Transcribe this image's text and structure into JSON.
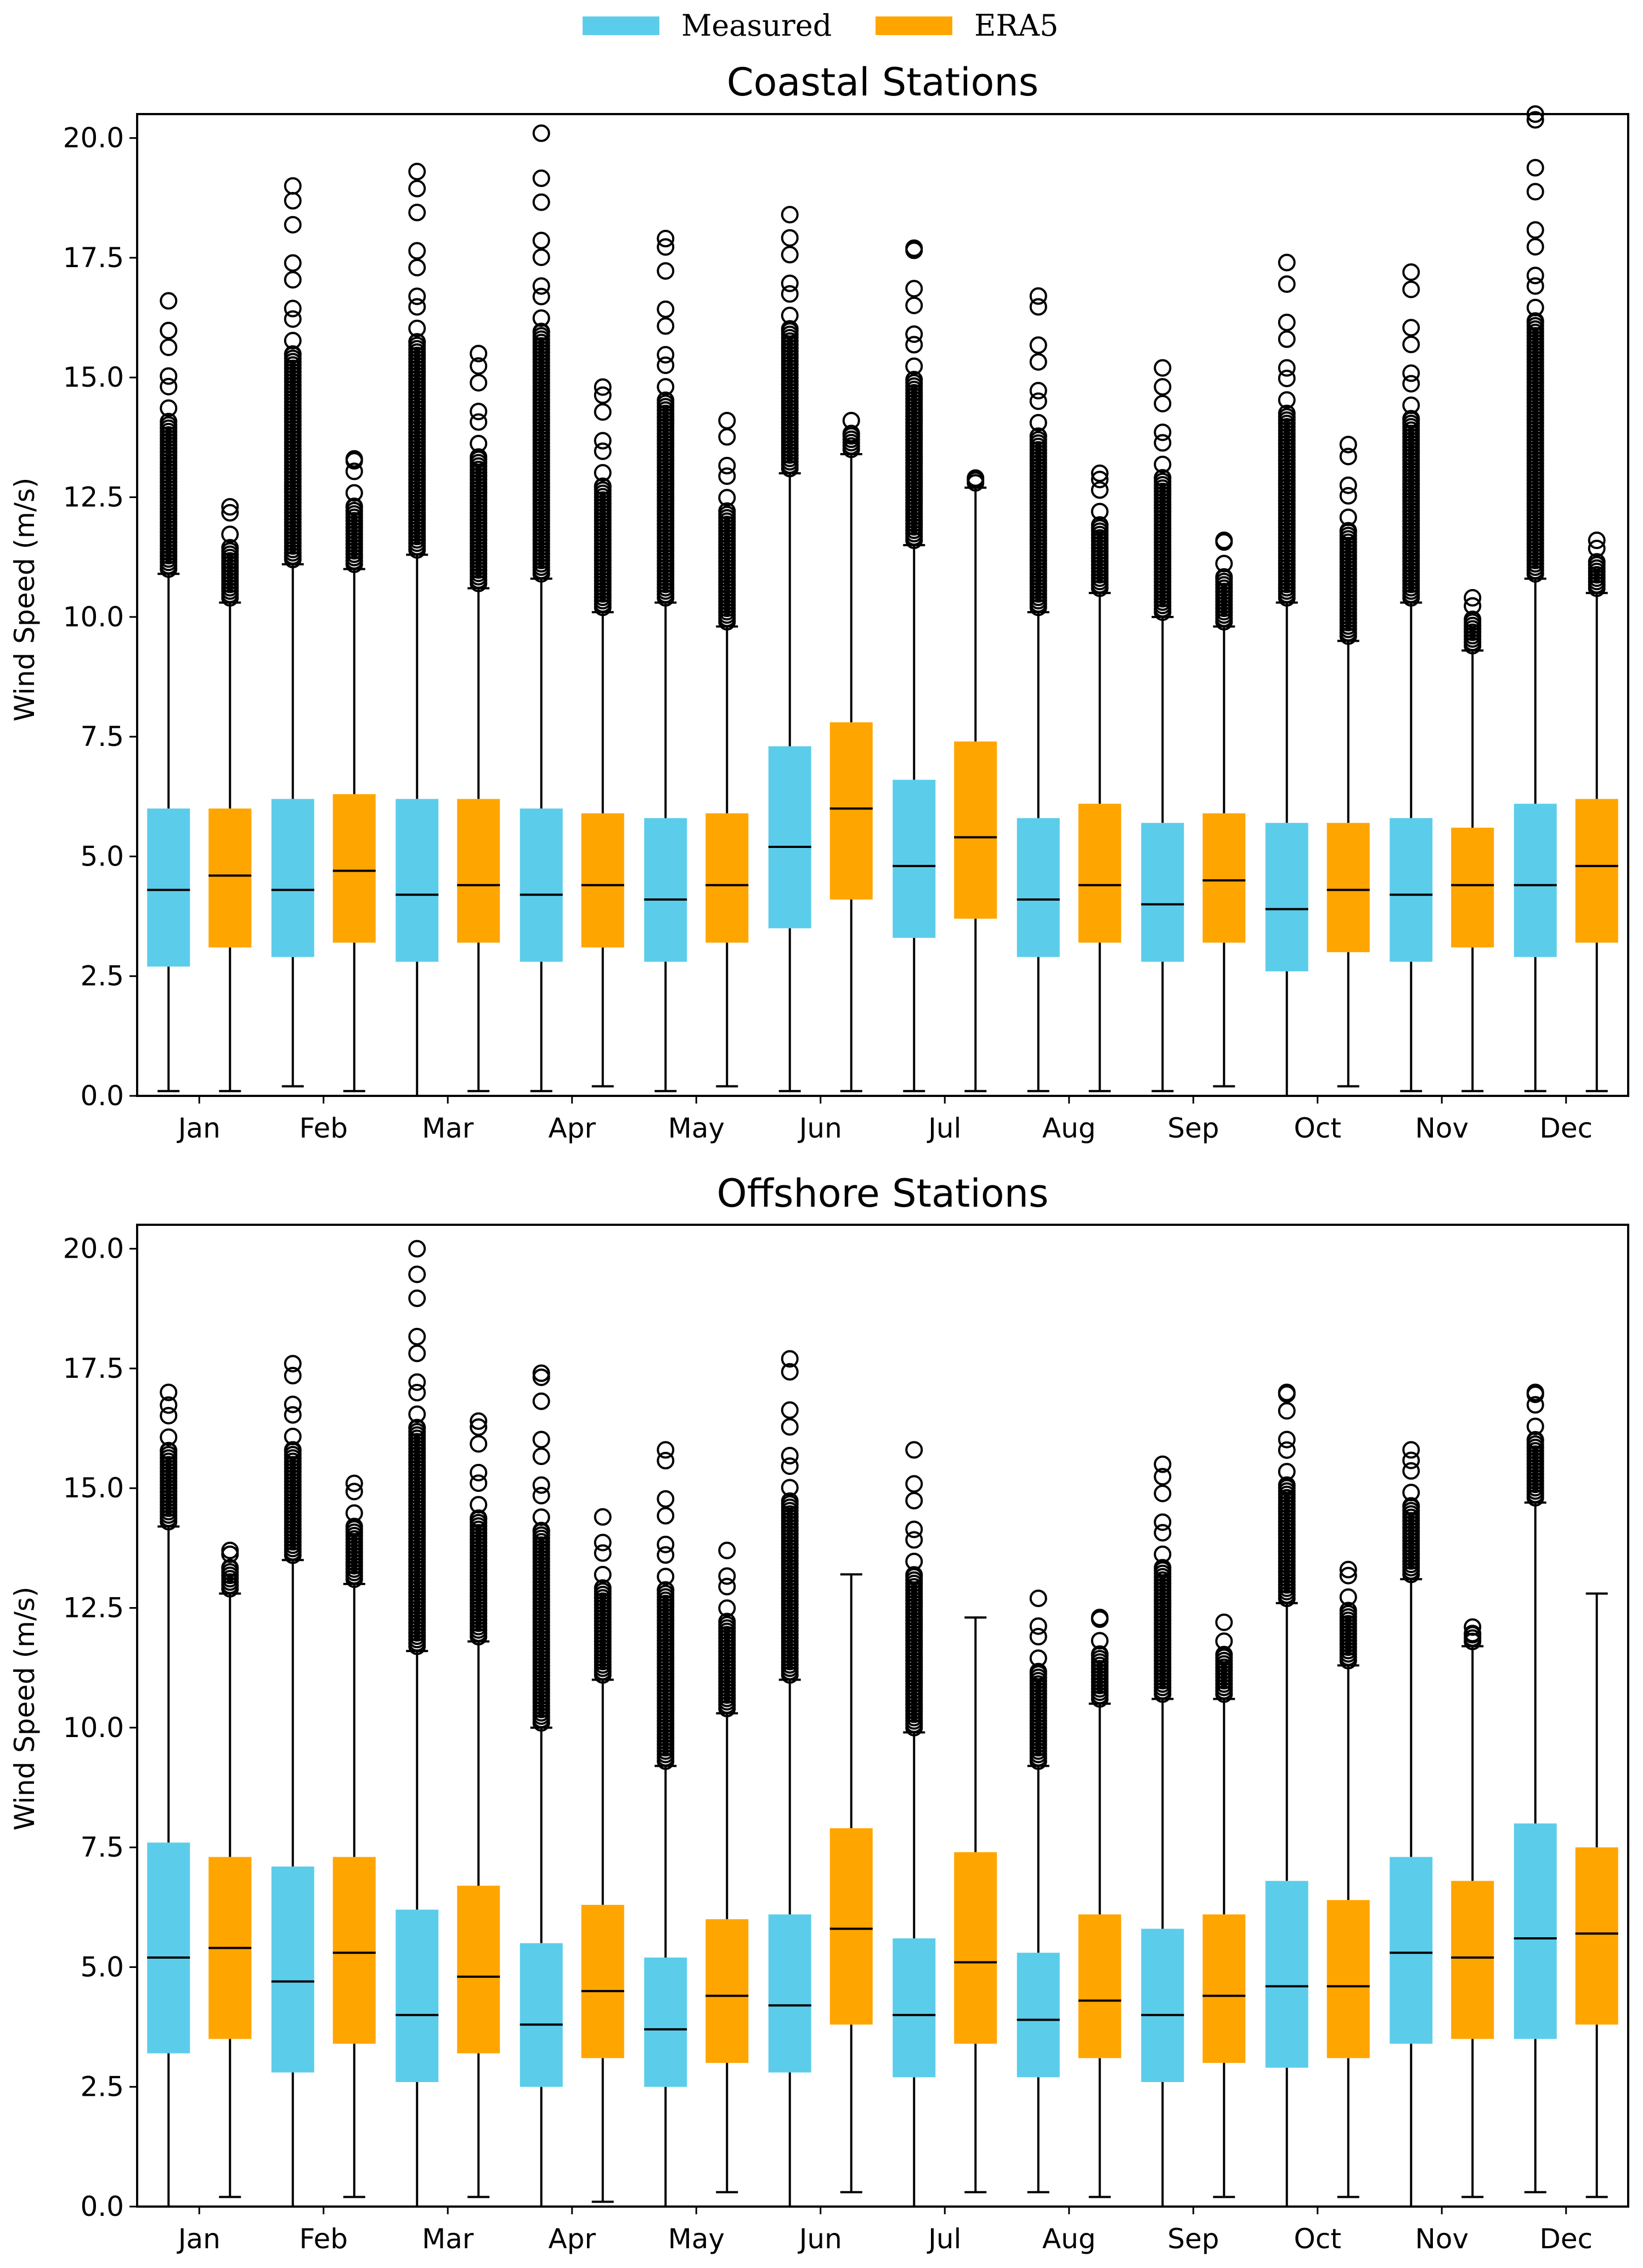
{
  "legend": {
    "items": [
      {
        "label": "Measured",
        "color": "#5BCDEA"
      },
      {
        "label": "ERA5",
        "color": "#FFA500"
      }
    ]
  },
  "chart_data": [
    {
      "type": "box",
      "title": "Coastal Stations",
      "xlabel": "",
      "ylabel": "Wind Speed (m/s)",
      "ylim": [
        0,
        20.5
      ],
      "yticks": [
        "0.0",
        "2.5",
        "5.0",
        "7.5",
        "10.0",
        "12.5",
        "15.0",
        "17.5",
        "20.0"
      ],
      "categories": [
        "Jan",
        "Feb",
        "Mar",
        "Apr",
        "May",
        "Jun",
        "Jul",
        "Aug",
        "Sep",
        "Oct",
        "Nov",
        "Dec"
      ],
      "series": [
        {
          "name": "Measured",
          "boxes": [
            {
              "min": 0.1,
              "q1": 2.7,
              "median": 4.3,
              "q3": 6.0,
              "max": 10.9,
              "outliers_min": 11.0,
              "outliers_max": 16.6
            },
            {
              "min": 0.2,
              "q1": 2.9,
              "median": 4.3,
              "q3": 6.2,
              "max": 11.1,
              "outliers_min": 11.2,
              "outliers_max": 19.0
            },
            {
              "min": 0.0,
              "q1": 2.8,
              "median": 4.2,
              "q3": 6.2,
              "max": 11.3,
              "outliers_min": 11.4,
              "outliers_max": 19.3
            },
            {
              "min": 0.1,
              "q1": 2.8,
              "median": 4.2,
              "q3": 6.0,
              "max": 10.8,
              "outliers_min": 10.9,
              "outliers_max": 20.1
            },
            {
              "min": 0.1,
              "q1": 2.8,
              "median": 4.1,
              "q3": 5.8,
              "max": 10.3,
              "outliers_min": 10.4,
              "outliers_max": 17.9
            },
            {
              "min": 0.1,
              "q1": 3.5,
              "median": 5.2,
              "q3": 7.3,
              "max": 13.0,
              "outliers_min": 13.1,
              "outliers_max": 18.4
            },
            {
              "min": 0.1,
              "q1": 3.3,
              "median": 4.8,
              "q3": 6.6,
              "max": 11.5,
              "outliers_min": 11.6,
              "outliers_max": 17.7
            },
            {
              "min": 0.1,
              "q1": 2.9,
              "median": 4.1,
              "q3": 5.8,
              "max": 10.1,
              "outliers_min": 10.2,
              "outliers_max": 16.7
            },
            {
              "min": 0.1,
              "q1": 2.8,
              "median": 4.0,
              "q3": 5.7,
              "max": 10.0,
              "outliers_min": 10.1,
              "outliers_max": 15.2
            },
            {
              "min": 0.0,
              "q1": 2.6,
              "median": 3.9,
              "q3": 5.7,
              "max": 10.3,
              "outliers_min": 10.4,
              "outliers_max": 17.4
            },
            {
              "min": 0.1,
              "q1": 2.8,
              "median": 4.2,
              "q3": 5.8,
              "max": 10.3,
              "outliers_min": 10.4,
              "outliers_max": 17.2
            },
            {
              "min": 0.1,
              "q1": 2.9,
              "median": 4.4,
              "q3": 6.1,
              "max": 10.8,
              "outliers_min": 10.9,
              "outliers_max": 20.5
            }
          ]
        },
        {
          "name": "ERA5",
          "boxes": [
            {
              "min": 0.1,
              "q1": 3.1,
              "median": 4.6,
              "q3": 6.0,
              "max": 10.3,
              "outliers_min": 10.4,
              "outliers_max": 12.3
            },
            {
              "min": 0.1,
              "q1": 3.2,
              "median": 4.7,
              "q3": 6.3,
              "max": 11.0,
              "outliers_min": 11.1,
              "outliers_max": 13.3
            },
            {
              "min": 0.1,
              "q1": 3.2,
              "median": 4.4,
              "q3": 6.2,
              "max": 10.6,
              "outliers_min": 10.7,
              "outliers_max": 15.5
            },
            {
              "min": 0.2,
              "q1": 3.1,
              "median": 4.4,
              "q3": 5.9,
              "max": 10.1,
              "outliers_min": 10.2,
              "outliers_max": 14.8
            },
            {
              "min": 0.2,
              "q1": 3.2,
              "median": 4.4,
              "q3": 5.9,
              "max": 9.8,
              "outliers_min": 9.9,
              "outliers_max": 14.1
            },
            {
              "min": 0.1,
              "q1": 4.1,
              "median": 6.0,
              "q3": 7.8,
              "max": 13.4,
              "outliers_min": 13.5,
              "outliers_max": 14.1
            },
            {
              "min": 0.1,
              "q1": 3.7,
              "median": 5.4,
              "q3": 7.4,
              "max": 12.7,
              "outliers_min": 12.8,
              "outliers_max": 12.9
            },
            {
              "min": 0.1,
              "q1": 3.2,
              "median": 4.4,
              "q3": 6.1,
              "max": 10.5,
              "outliers_min": 10.6,
              "outliers_max": 13.0
            },
            {
              "min": 0.2,
              "q1": 3.2,
              "median": 4.5,
              "q3": 5.9,
              "max": 9.8,
              "outliers_min": 9.9,
              "outliers_max": 11.6
            },
            {
              "min": 0.2,
              "q1": 3.0,
              "median": 4.3,
              "q3": 5.7,
              "max": 9.5,
              "outliers_min": 9.6,
              "outliers_max": 13.6
            },
            {
              "min": 0.1,
              "q1": 3.1,
              "median": 4.4,
              "q3": 5.6,
              "max": 9.3,
              "outliers_min": 9.4,
              "outliers_max": 10.4
            },
            {
              "min": 0.1,
              "q1": 3.2,
              "median": 4.8,
              "q3": 6.2,
              "max": 10.5,
              "outliers_min": 10.6,
              "outliers_max": 11.6
            }
          ]
        }
      ]
    },
    {
      "type": "box",
      "title": "Offshore Stations",
      "xlabel": "",
      "ylabel": "Wind Speed (m/s)",
      "ylim": [
        0,
        20.5
      ],
      "yticks": [
        "0.0",
        "2.5",
        "5.0",
        "7.5",
        "10.0",
        "12.5",
        "15.0",
        "17.5",
        "20.0"
      ],
      "categories": [
        "Jan",
        "Feb",
        "Mar",
        "Apr",
        "May",
        "Jun",
        "Jul",
        "Aug",
        "Sep",
        "Oct",
        "Nov",
        "Dec"
      ],
      "series": [
        {
          "name": "Measured",
          "boxes": [
            {
              "min": 0.0,
              "q1": 3.2,
              "median": 5.2,
              "q3": 7.6,
              "max": 14.2,
              "outliers_min": 14.3,
              "outliers_max": 17.0
            },
            {
              "min": 0.0,
              "q1": 2.8,
              "median": 4.7,
              "q3": 7.1,
              "max": 13.5,
              "outliers_min": 13.6,
              "outliers_max": 17.6
            },
            {
              "min": 0.0,
              "q1": 2.6,
              "median": 4.0,
              "q3": 6.2,
              "max": 11.6,
              "outliers_min": 11.7,
              "outliers_max": 20.0
            },
            {
              "min": 0.0,
              "q1": 2.5,
              "median": 3.8,
              "q3": 5.5,
              "max": 10.0,
              "outliers_min": 10.1,
              "outliers_max": 17.4
            },
            {
              "min": 0.0,
              "q1": 2.5,
              "median": 3.7,
              "q3": 5.2,
              "max": 9.2,
              "outliers_min": 9.3,
              "outliers_max": 15.8
            },
            {
              "min": 0.0,
              "q1": 2.8,
              "median": 4.2,
              "q3": 6.1,
              "max": 11.0,
              "outliers_min": 11.1,
              "outliers_max": 17.7
            },
            {
              "min": 0.0,
              "q1": 2.7,
              "median": 4.0,
              "q3": 5.6,
              "max": 9.9,
              "outliers_min": 10.0,
              "outliers_max": 15.8
            },
            {
              "min": 0.3,
              "q1": 2.7,
              "median": 3.9,
              "q3": 5.3,
              "max": 9.2,
              "outliers_min": 9.3,
              "outliers_max": 12.7
            },
            {
              "min": 0.0,
              "q1": 2.6,
              "median": 4.0,
              "q3": 5.8,
              "max": 10.6,
              "outliers_min": 10.7,
              "outliers_max": 15.5
            },
            {
              "min": 0.0,
              "q1": 2.9,
              "median": 4.6,
              "q3": 6.8,
              "max": 12.6,
              "outliers_min": 12.7,
              "outliers_max": 17.0
            },
            {
              "min": 0.0,
              "q1": 3.4,
              "median": 5.3,
              "q3": 7.3,
              "max": 13.1,
              "outliers_min": 13.2,
              "outliers_max": 15.8
            },
            {
              "min": 0.3,
              "q1": 3.5,
              "median": 5.6,
              "q3": 8.0,
              "max": 14.7,
              "outliers_min": 14.8,
              "outliers_max": 17.0
            }
          ]
        },
        {
          "name": "ERA5",
          "boxes": [
            {
              "min": 0.2,
              "q1": 3.5,
              "median": 5.4,
              "q3": 7.3,
              "max": 12.8,
              "outliers_min": 12.9,
              "outliers_max": 13.7
            },
            {
              "min": 0.2,
              "q1": 3.4,
              "median": 5.3,
              "q3": 7.3,
              "max": 13.0,
              "outliers_min": 13.1,
              "outliers_max": 15.1
            },
            {
              "min": 0.2,
              "q1": 3.2,
              "median": 4.8,
              "q3": 6.7,
              "max": 11.8,
              "outliers_min": 11.9,
              "outliers_max": 16.4
            },
            {
              "min": 0.1,
              "q1": 3.1,
              "median": 4.5,
              "q3": 6.3,
              "max": 11.0,
              "outliers_min": 11.1,
              "outliers_max": 14.4
            },
            {
              "min": 0.3,
              "q1": 3.0,
              "median": 4.4,
              "q3": 6.0,
              "max": 10.3,
              "outliers_min": 10.4,
              "outliers_max": 13.7
            },
            {
              "min": 0.3,
              "q1": 3.8,
              "median": 5.8,
              "q3": 7.9,
              "max": 13.2,
              "outliers_min": null,
              "outliers_max": null
            },
            {
              "min": 0.3,
              "q1": 3.4,
              "median": 5.1,
              "q3": 7.4,
              "max": 12.3,
              "outliers_min": null,
              "outliers_max": null
            },
            {
              "min": 0.2,
              "q1": 3.1,
              "median": 4.3,
              "q3": 6.1,
              "max": 10.5,
              "outliers_min": 10.6,
              "outliers_max": 12.3
            },
            {
              "min": 0.2,
              "q1": 3.0,
              "median": 4.4,
              "q3": 6.1,
              "max": 10.6,
              "outliers_min": 10.7,
              "outliers_max": 12.2
            },
            {
              "min": 0.2,
              "q1": 3.1,
              "median": 4.6,
              "q3": 6.4,
              "max": 11.3,
              "outliers_min": 11.4,
              "outliers_max": 13.3
            },
            {
              "min": 0.2,
              "q1": 3.5,
              "median": 5.2,
              "q3": 6.8,
              "max": 11.7,
              "outliers_min": 11.8,
              "outliers_max": 12.1
            },
            {
              "min": 0.2,
              "q1": 3.8,
              "median": 5.7,
              "q3": 7.5,
              "max": 12.8,
              "outliers_min": null,
              "outliers_max": null
            }
          ]
        }
      ]
    }
  ]
}
